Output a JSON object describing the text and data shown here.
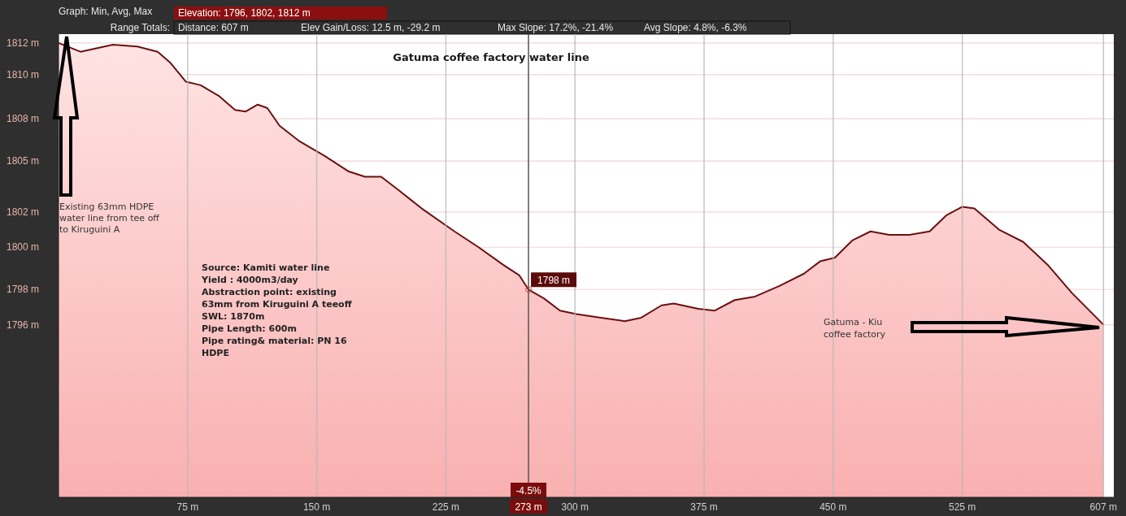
{
  "chart_data": {
    "type": "area",
    "title": "Gatuma coffee factory water line",
    "x": [
      0,
      12.7,
      31.6,
      45.8,
      57.6,
      64.7,
      74,
      82.6,
      93,
      102.5,
      108.6,
      115.7,
      121.3,
      128.4,
      140.2,
      154.4,
      168.6,
      178,
      187.4,
      196.8,
      211,
      230,
      244,
      258.3,
      267.7,
      273,
      281.9,
      291.3,
      300.8,
      315,
      329,
      338.5,
      350.3,
      357.4,
      371.6,
      381,
      392.8,
      404.6,
      418.8,
      433,
      442.4,
      450.9,
      461.3,
      471.7,
      482.5,
      494.3,
      506,
      515.6,
      525,
      532,
      546.3,
      560.4,
      574.6,
      588.7,
      607
    ],
    "series": [
      {
        "color": "#6b1010",
        "values": [
          1812,
          1811.5,
          1811.9,
          1811.8,
          1811.5,
          1810.9,
          1809.8,
          1809.6,
          1809.0,
          1808.2,
          1808.1,
          1808.5,
          1808.3,
          1807.3,
          1806.4,
          1805.6,
          1804.7,
          1804.4,
          1804.4,
          1803.7,
          1802.6,
          1801.3,
          1800.4,
          1799.4,
          1798.8,
          1798,
          1797.5,
          1796.8,
          1796.6,
          1796.4,
          1796.2,
          1796.4,
          1797.1,
          1797.2,
          1796.9,
          1796.8,
          1797.4,
          1797.6,
          1798.2,
          1798.9,
          1799.6,
          1799.8,
          1800.8,
          1801.3,
          1801.1,
          1801.1,
          1801.3,
          1802.2,
          1802.7,
          1802.6,
          1801.4,
          1800.7,
          1799.4,
          1797.8,
          1796
        ]
      }
    ],
    "xlim": [
      0,
      613
    ],
    "ylim": [
      1786.2,
      1812.5
    ],
    "xticks": [
      {
        "value": 75,
        "label": "75 m"
      },
      {
        "value": 150,
        "label": "150 m"
      },
      {
        "value": 225,
        "label": "225 m"
      },
      {
        "value": 300,
        "label": "300 m"
      },
      {
        "value": 375,
        "label": "375 m"
      },
      {
        "value": 450,
        "label": "450 m"
      },
      {
        "value": 525,
        "label": "525 m"
      },
      {
        "value": 607,
        "label": "607 m"
      }
    ],
    "yticks": [
      {
        "value": 1812,
        "label": "1812 m"
      },
      {
        "value": 1810.2,
        "label": "1810 m"
      },
      {
        "value": 1807.7,
        "label": "1808 m"
      },
      {
        "value": 1805.3,
        "label": "1805 m"
      },
      {
        "value": 1802.4,
        "label": "1802 m"
      },
      {
        "value": 1800.4,
        "label": "1800 m"
      },
      {
        "value": 1798,
        "label": "1798 m"
      },
      {
        "value": 1796,
        "label": "1796 m"
      }
    ],
    "grid": true,
    "ref_lines": [
      {
        "axis": "x",
        "value": 273,
        "label": "273 m",
        "color": "#555555"
      }
    ],
    "annotations": [
      "Graph: Min, Avg, Max",
      "Elevation: 1796, 1802, 1812 m",
      "Range Totals:",
      "Distance: 607 m",
      "Elev Gain/Loss: 12.5 m, -29.2 m",
      "Max Slope: 17.2%, -21.4%",
      "Avg Slope: 4.8%, -6.3%",
      "Existing 63mm HDPE\nwater line from tee off\nto Kiruguini A",
      "Source: Kamiti water line\nYield : 4000m3/day\nAbstraction point: existing\n63mm from Kiruguini A teeoff\nSWL: 1870m\nPipe Length: 600m\nPipe rating& material: PN 16\nHDPE",
      "Gatuma - Kiu\ncoffee factory",
      {
        "text": "1798 m",
        "x": 273,
        "y": 1798
      },
      {
        "text": "-4.5%",
        "x": 273
      }
    ]
  }
}
